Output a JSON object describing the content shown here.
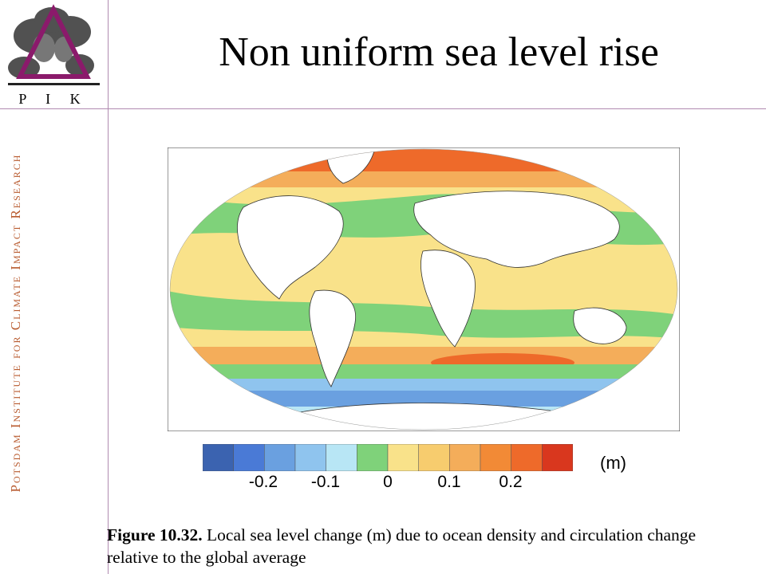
{
  "slide": {
    "title": "Non uniform sea level rise",
    "sidebar_text": "Potsdam Institute for Climate Impact Research"
  },
  "logo": {
    "letters": "P I K",
    "accent_color": "#8b1a6b"
  },
  "colors": {
    "divider": "#b08ab0",
    "sidebar_text": "#b85a2e"
  },
  "figure": {
    "unit_label": "(m)",
    "colorbar_colors": [
      "#3b63b0",
      "#4a7ad6",
      "#6aa0e0",
      "#8fc4ee",
      "#b8e6f5",
      "#7fd27a",
      "#f9e28a",
      "#f7cc6e",
      "#f4ad5a",
      "#f28a36",
      "#ee6a2a",
      "#d9371e"
    ],
    "tick_labels": [
      "-0.2",
      "-0.1",
      "0",
      "0.1",
      "0.2"
    ]
  },
  "caption": {
    "label": "Figure 10.32.",
    "text": " Local sea level change (m) due to ocean density and circulation change relative to the global average"
  }
}
